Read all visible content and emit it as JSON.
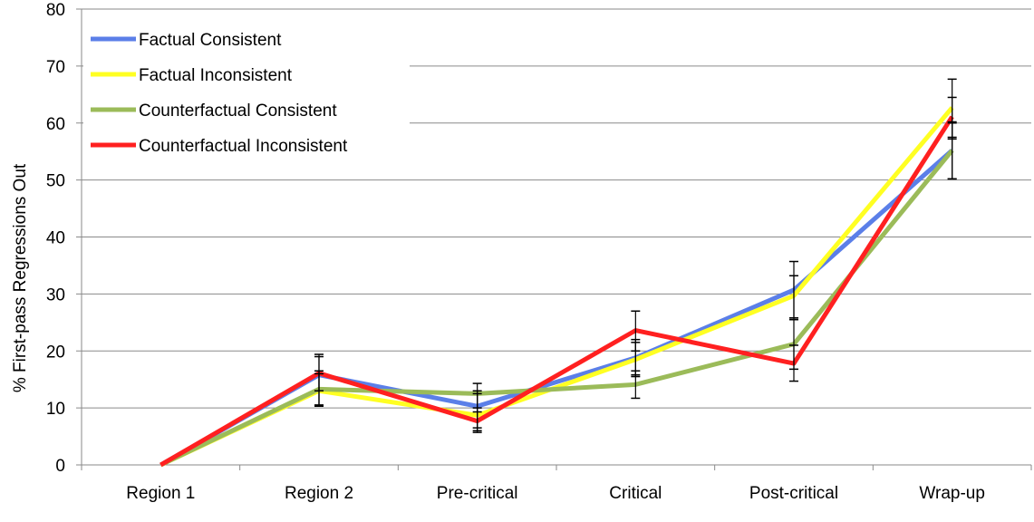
{
  "chart_data": {
    "type": "line",
    "ylabel": "% First-pass Regressions Out",
    "xlabel": "",
    "categories": [
      "Region 1",
      "Region 2",
      "Pre-critical",
      "Critical",
      "Post-critical",
      "Wrap-up"
    ],
    "ylim": [
      0,
      80
    ],
    "yticks": [
      0,
      10,
      20,
      30,
      40,
      50,
      60,
      70,
      80
    ],
    "grid": true,
    "legend_position": "top-left",
    "series": [
      {
        "name": "Factual Consistent",
        "color": "#5b7fe8",
        "values": [
          0,
          15.8,
          10.3,
          18.8,
          30.7,
          55.2
        ],
        "err_low": [
          null,
          10.5,
          6.5,
          15.5,
          25.5,
          50.2
        ],
        "err_high": [
          null,
          19.0,
          13.0,
          22.0,
          35.7,
          60.2
        ]
      },
      {
        "name": "Factual Inconsistent",
        "color": "#ffff22",
        "values": [
          0,
          13.0,
          8.7,
          18.5,
          29.7,
          62.7
        ],
        "err_low": [
          null,
          10.5,
          6.0,
          15.8,
          25.8,
          57.5
        ],
        "err_high": [
          null,
          16.0,
          12.5,
          21.5,
          33.2,
          67.7
        ]
      },
      {
        "name": "Counterfactual Consistent",
        "color": "#9bbb59",
        "values": [
          0,
          13.3,
          12.5,
          14.1,
          21.2,
          55.2
        ],
        "err_low": [
          null,
          10.3,
          9.3,
          11.7,
          16.8,
          50.2
        ],
        "err_high": [
          null,
          16.5,
          14.3,
          16.5,
          25.5,
          60.0
        ]
      },
      {
        "name": "Counterfactual Inconsistent",
        "color": "#ff2020",
        "values": [
          0,
          16.1,
          7.7,
          23.6,
          17.8,
          61.1
        ],
        "err_low": [
          null,
          13.0,
          5.7,
          20.0,
          14.7,
          57.2
        ],
        "err_high": [
          null,
          19.4,
          10.0,
          27.0,
          21.0,
          64.5
        ]
      }
    ]
  }
}
